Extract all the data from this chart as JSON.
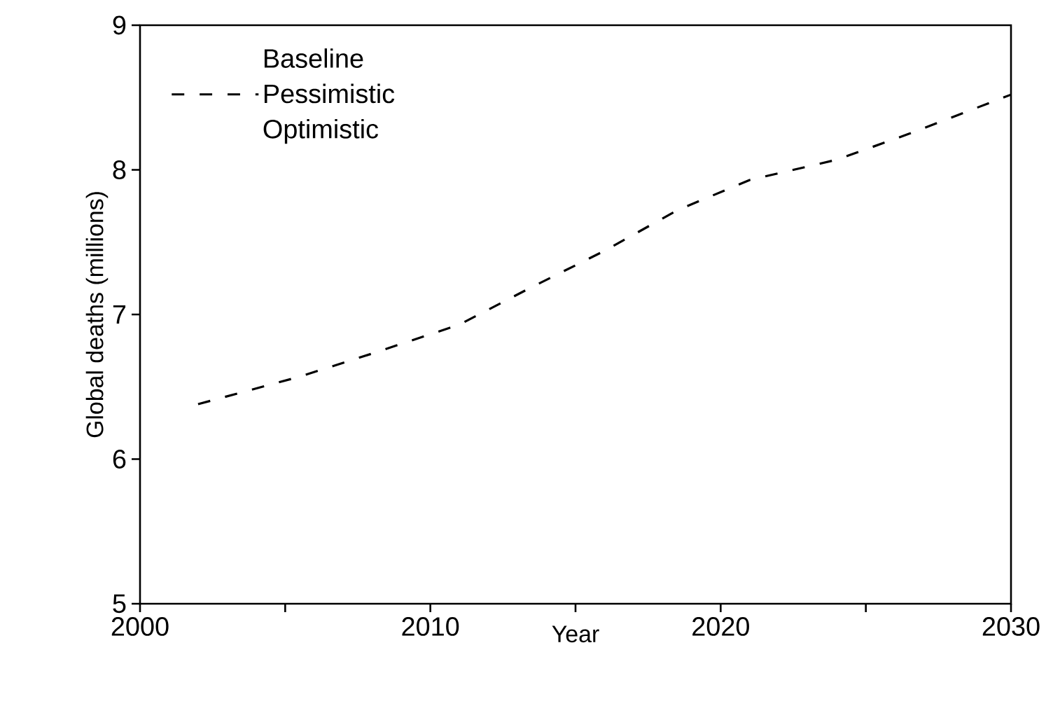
{
  "chart_data": {
    "type": "line",
    "xlabel": "Year",
    "ylabel": "Global deaths (millions)",
    "x": [
      2002,
      2005.5,
      2008,
      2011,
      2013.5,
      2016,
      2018.5,
      2021,
      2024,
      2026.5,
      2030
    ],
    "series": [
      {
        "name": "Baseline",
        "color": "#000000",
        "values": [
          null,
          null,
          null,
          null,
          null,
          null,
          null,
          null,
          null,
          null,
          null
        ]
      },
      {
        "name": "Pessimistic",
        "color": "#000000",
        "line_style": "dashed",
        "values": [
          6.38,
          6.57,
          6.73,
          6.93,
          7.19,
          7.44,
          7.72,
          7.93,
          8.07,
          8.25,
          8.52
        ]
      },
      {
        "name": "Optimistic",
        "color": "#000000",
        "values": [
          null,
          null,
          null,
          null,
          null,
          null,
          null,
          null,
          null,
          null,
          null
        ]
      }
    ],
    "xlim": [
      2000,
      2030
    ],
    "ylim": [
      5,
      9
    ],
    "xticks": [
      2000,
      {
        "value": 2005,
        "label": null
      },
      2010,
      {
        "value": 2015,
        "label": null
      },
      2020,
      {
        "value": 2025,
        "label": null
      },
      2030
    ],
    "yticks": [
      5,
      6,
      7,
      8,
      9
    ],
    "grid": false,
    "legend": "top left",
    "marker": "none"
  }
}
